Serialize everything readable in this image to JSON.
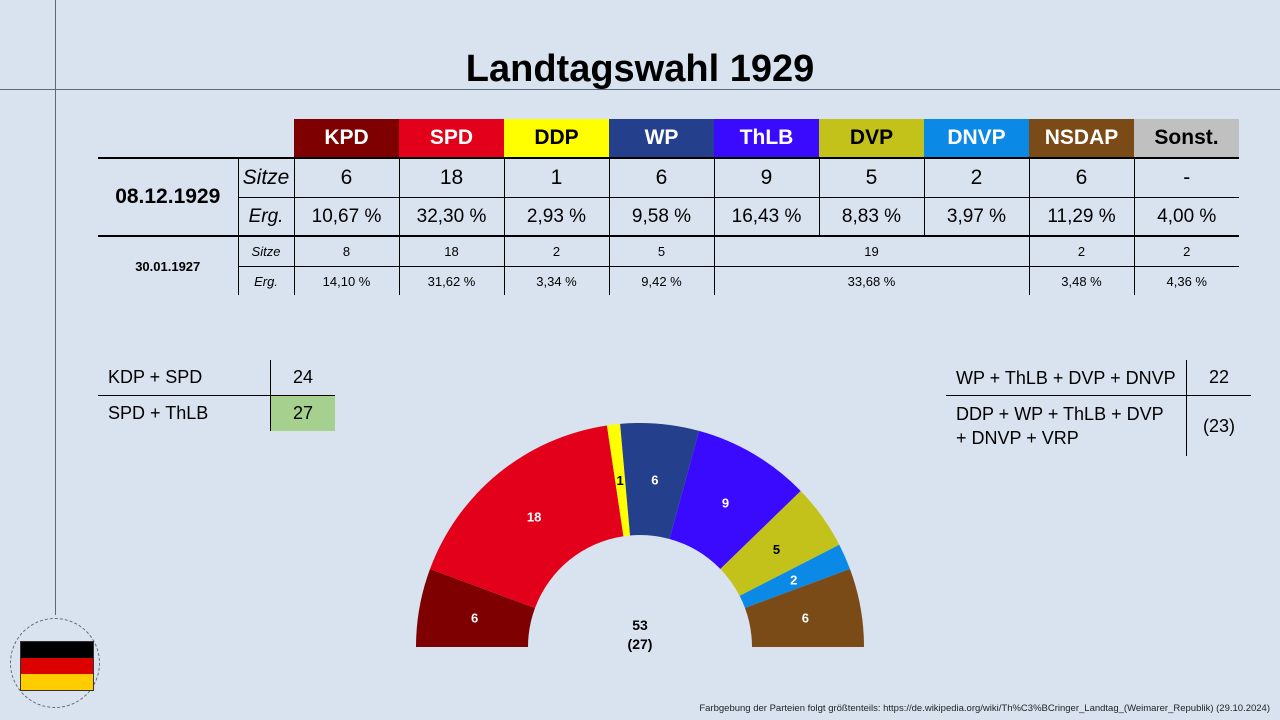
{
  "title": "Landtagswahl 1929",
  "parties": [
    {
      "name": "KPD",
      "color": "#7f0000",
      "text": "#ffffff"
    },
    {
      "name": "SPD",
      "color": "#e2001a",
      "text": "#ffffff"
    },
    {
      "name": "DDP",
      "color": "#ffff00",
      "text": "#000000"
    },
    {
      "name": "WP",
      "color": "#243f8c",
      "text": "#ffffff"
    },
    {
      "name": "ThLB",
      "color": "#3a0aff",
      "text": "#ffffff"
    },
    {
      "name": "DVP",
      "color": "#c2c21a",
      "text": "#000000"
    },
    {
      "name": "DNVP",
      "color": "#0a8ae6",
      "text": "#ffffff"
    },
    {
      "name": "NSDAP",
      "color": "#7a4a17",
      "text": "#ffffff"
    },
    {
      "name": "Sonst.",
      "color": "#c0c0c0",
      "text": "#000000"
    }
  ],
  "labels": {
    "seats": "Sitze",
    "result": "Erg."
  },
  "election_1929": {
    "date": "08.12.1929",
    "seats": [
      "6",
      "18",
      "1",
      "6",
      "9",
      "5",
      "2",
      "6",
      "-"
    ],
    "results": [
      "10,67 %",
      "32,30 %",
      "2,93 %",
      "9,58 %",
      "16,43 %",
      "8,83 %",
      "3,97 %",
      "11,29 %",
      "4,00 %"
    ]
  },
  "election_1927": {
    "date": "30.01.1927",
    "seats": [
      "8",
      "18",
      "2",
      "5",
      "19",
      "2",
      "2"
    ],
    "results": [
      "14,10 %",
      "31,62 %",
      "3,34 %",
      "9,42 %",
      "33,68 %",
      "3,48 %",
      "4,36 %"
    ]
  },
  "coalitions_left": [
    {
      "name": "KDP + SPD",
      "seats": "24"
    },
    {
      "name": "SPD + ThLB",
      "seats": "27"
    }
  ],
  "coalitions_right": [
    {
      "name": "WP + ThLB + DVP + DNVP",
      "seats": "22"
    },
    {
      "name": "DDP + WP + ThLB + DVP + DNVP + VRP",
      "seats": "(23)"
    }
  ],
  "chart_data": {
    "type": "pie",
    "variant": "parliament-semicircle",
    "categories": [
      "KPD",
      "SPD",
      "DDP",
      "WP",
      "ThLB",
      "DVP",
      "DNVP",
      "NSDAP"
    ],
    "values": [
      6,
      18,
      1,
      6,
      9,
      5,
      2,
      6
    ],
    "colors": [
      "#7f0000",
      "#e2001a",
      "#ffff00",
      "#243f8c",
      "#3a0aff",
      "#c2c21a",
      "#0a8ae6",
      "#7a4a17"
    ],
    "label_colors": [
      "#ffffff",
      "#ffffff",
      "#000000",
      "#ffffff",
      "#ffffff",
      "#000000",
      "#ffffff",
      "#ffffff"
    ],
    "total": "53",
    "majority": "(27)"
  },
  "footer": "Farbgebung der Parteien folgt größtenteils: https://de.wikipedia.org/wiki/Th%C3%BCringer_Landtag_(Weimarer_Republik) (29.10.2024)",
  "flag_colors": [
    "#000000",
    "#dd0000",
    "#ffcc00"
  ]
}
